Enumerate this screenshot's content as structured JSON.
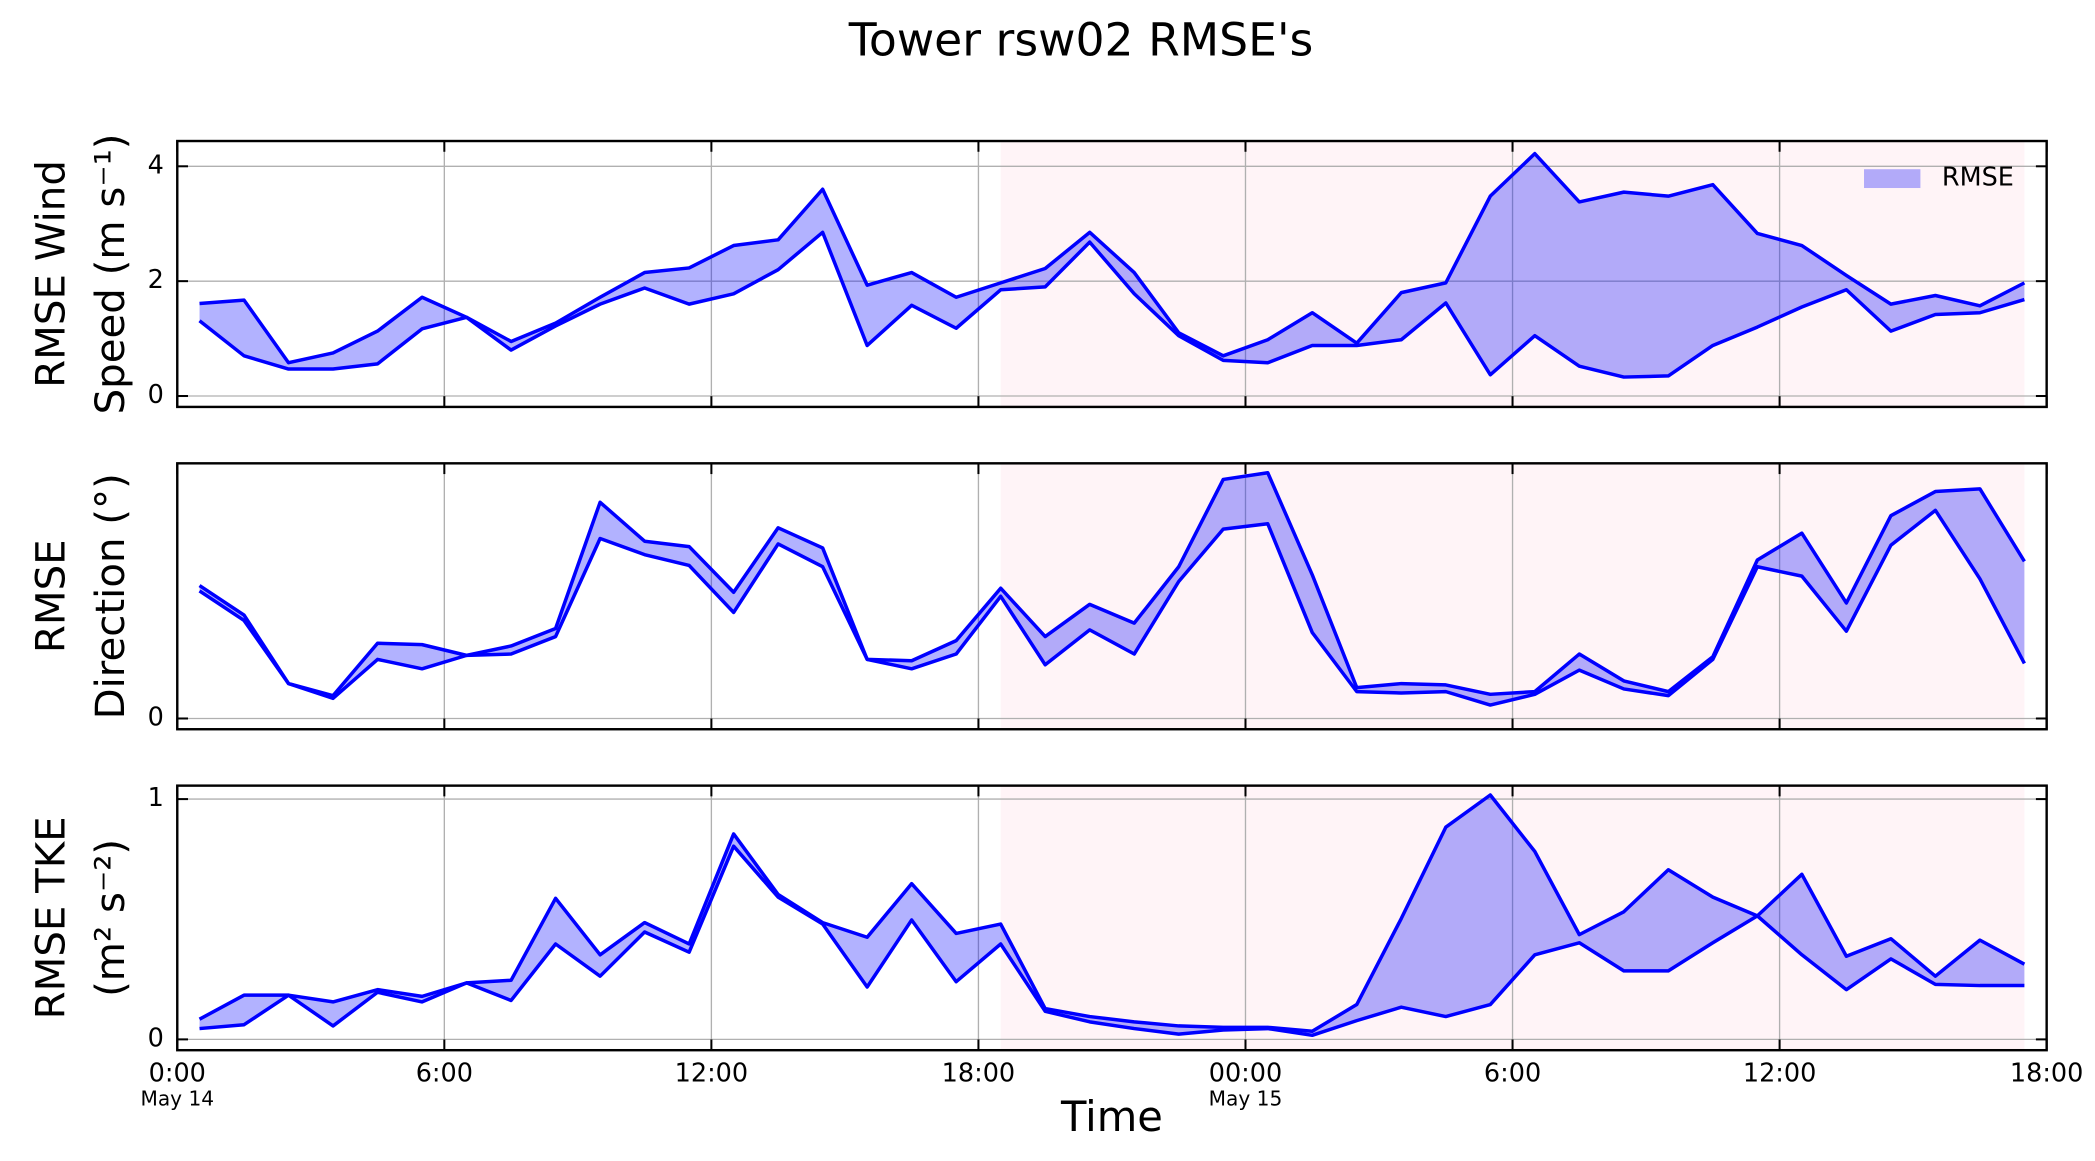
{
  "chart_data": [
    {
      "type": "range_area",
      "title": "Tower rsw02 RMSE's",
      "y_label": [
        "RMSE Wind",
        "Speed (m s⁻¹)"
      ],
      "x": [
        0.5,
        1.5,
        2.5,
        3.5,
        4.5,
        5.5,
        6.5,
        7.5,
        8.5,
        9.5,
        10.5,
        11.5,
        12.5,
        13.5,
        14.5,
        15.5,
        16.5,
        17.5,
        18.5,
        19.5,
        20.5,
        21.5,
        22.5,
        23.5,
        24.5,
        25.5,
        26.5,
        27.5,
        28.5,
        29.5,
        30.5,
        31.5,
        32.5,
        33.5,
        34.5,
        35.5,
        36.5,
        37.5,
        38.5,
        39.5,
        40.5,
        41.5
      ],
      "series": [
        {
          "name": "RMSE",
          "color": "#0000ff",
          "fill": "#0000ff",
          "fill_opacity": 0.3,
          "high": [
            1.61,
            1.67,
            0.58,
            0.75,
            1.13,
            1.72,
            1.37,
            0.95,
            1.27,
            1.72,
            2.15,
            2.23,
            2.62,
            2.72,
            3.6,
            1.93,
            2.15,
            1.72,
            1.97,
            2.22,
            2.85,
            2.15,
            1.1,
            0.7,
            0.98,
            1.45,
            0.92,
            1.8,
            1.97,
            3.48,
            4.22,
            3.38,
            3.55,
            3.48,
            3.68,
            2.83,
            2.62,
            2.1,
            1.6,
            1.75,
            1.57,
            1.97
          ],
          "low": [
            1.31,
            0.7,
            0.47,
            0.47,
            0.56,
            1.17,
            1.37,
            0.8,
            1.22,
            1.6,
            1.88,
            1.6,
            1.78,
            2.2,
            2.85,
            0.88,
            1.58,
            1.18,
            1.85,
            1.9,
            2.68,
            1.78,
            1.05,
            0.62,
            0.58,
            0.88,
            0.88,
            0.98,
            1.62,
            0.37,
            1.05,
            0.52,
            0.33,
            0.35,
            0.88,
            1.2,
            1.55,
            1.85,
            1.13,
            1.42,
            1.45,
            1.68
          ]
        }
      ],
      "xlim": [
        0,
        42
      ],
      "ylim": [
        -0.19,
        4.44
      ],
      "yticks": [
        0,
        2,
        4
      ],
      "grid": true,
      "legend": "upper right",
      "shaded_span": [
        18.5,
        41.5
      ],
      "shade_color": "#fff4f7"
    },
    {
      "type": "range_area",
      "y_label": [
        "RMSE",
        "Direction (°)"
      ],
      "x": [
        0.5,
        1.5,
        2.5,
        3.5,
        4.5,
        5.5,
        6.5,
        7.5,
        8.5,
        9.5,
        10.5,
        11.5,
        12.5,
        13.5,
        14.5,
        15.5,
        16.5,
        17.5,
        18.5,
        19.5,
        20.5,
        21.5,
        22.5,
        23.5,
        24.5,
        25.5,
        26.5,
        27.5,
        28.5,
        29.5,
        30.5,
        31.5,
        32.5,
        33.5,
        34.5,
        35.5,
        36.5,
        37.5,
        38.5,
        39.5,
        40.5,
        41.5
      ],
      "series": [
        {
          "color": "#0000ff",
          "fill": "#0000ff",
          "fill_opacity": 0.3,
          "high": [
            39.6,
            30.8,
            10.4,
            6.8,
            22.4,
            22,
            18.8,
            21.6,
            26.8,
            64.4,
            52.8,
            51.2,
            37.6,
            56.8,
            50.8,
            17.6,
            17.2,
            23.2,
            38.8,
            24.4,
            34,
            28.4,
            45.2,
            71.2,
            73.2,
            42.8,
            9.2,
            10.4,
            10,
            7.2,
            8,
            19.2,
            11.2,
            8,
            18.4,
            47.2,
            55.2,
            34.4,
            60.4,
            67.6,
            68.4,
            46.8
          ],
          "low": [
            38,
            29.2,
            10.4,
            6,
            17.6,
            14.8,
            18.8,
            19.2,
            24.4,
            53.6,
            48.8,
            45.6,
            31.6,
            52,
            45.2,
            17.6,
            14.8,
            19.2,
            36.4,
            16,
            26.4,
            19.2,
            40.8,
            56.4,
            58,
            25.6,
            8,
            7.6,
            8,
            4,
            7.2,
            14.4,
            8.8,
            6.8,
            17.6,
            45.2,
            42.4,
            26,
            51.6,
            62,
            41.6,
            16.4
          ]
        }
      ],
      "xlim": [
        0,
        42
      ],
      "ylim": [
        -3.2,
        76
      ],
      "yticks": [
        0
      ],
      "grid": true,
      "shaded_span": [
        18.5,
        41.5
      ],
      "shade_color": "#fff4f7"
    },
    {
      "type": "range_area",
      "y_label": [
        "RMSE TKE",
        "(m² s⁻²)"
      ],
      "x_label": "Time",
      "x": [
        0.5,
        1.5,
        2.5,
        3.5,
        4.5,
        5.5,
        6.5,
        7.5,
        8.5,
        9.5,
        10.5,
        11.5,
        12.5,
        13.5,
        14.5,
        15.5,
        16.5,
        17.5,
        18.5,
        19.5,
        20.5,
        21.5,
        22.5,
        23.5,
        24.5,
        25.5,
        26.5,
        27.5,
        28.5,
        29.5,
        30.5,
        31.5,
        32.5,
        33.5,
        34.5,
        35.5,
        36.5,
        37.5,
        38.5,
        39.5,
        40.5,
        41.5
      ],
      "series": [
        {
          "color": "#0000ff",
          "fill": "#0000ff",
          "fill_opacity": 0.3,
          "high": [
            0.084,
            0.184,
            0.184,
            0.156,
            0.207,
            0.179,
            0.235,
            0.246,
            0.587,
            0.352,
            0.486,
            0.397,
            0.855,
            0.603,
            0.486,
            0.425,
            0.648,
            0.441,
            0.48,
            0.128,
            0.095,
            0.073,
            0.056,
            0.05,
            0.05,
            0.034,
            0.145,
            0.503,
            0.883,
            1.017,
            0.782,
            0.436,
            0.531,
            0.706,
            0.592,
            0.514,
            0.687,
            0.346,
            0.419,
            0.263,
            0.413,
            0.313
          ],
          "low": [
            0.045,
            0.061,
            0.184,
            0.056,
            0.196,
            0.156,
            0.235,
            0.162,
            0.397,
            0.263,
            0.447,
            0.363,
            0.804,
            0.592,
            0.48,
            0.218,
            0.497,
            0.24,
            0.397,
            0.117,
            0.073,
            0.045,
            0.022,
            0.039,
            0.045,
            0.017,
            0.078,
            0.134,
            0.095,
            0.145,
            0.352,
            0.402,
            0.285,
            0.285,
            0.402,
            0.514,
            0.352,
            0.207,
            0.335,
            0.229,
            0.224,
            0.224
          ]
        }
      ],
      "xlim": [
        0,
        42
      ],
      "ylim": [
        -0.045,
        1.056
      ],
      "yticks": [
        0,
        1
      ],
      "grid": true,
      "xticks": [
        {
          "value": 0,
          "label": "0:00",
          "sublabel": "May 14"
        },
        {
          "value": 6,
          "label": "6:00"
        },
        {
          "value": 12,
          "label": "12:00"
        },
        {
          "value": 18,
          "label": "18:00"
        },
        {
          "value": 24,
          "label": "00:00",
          "sublabel": "May 15"
        },
        {
          "value": 30,
          "label": "6:00"
        },
        {
          "value": 36,
          "label": "12:00"
        },
        {
          "value": 42,
          "label": "18:00"
        }
      ],
      "shaded_span": [
        18.5,
        41.5
      ],
      "shade_color": "#fff4f7"
    }
  ]
}
